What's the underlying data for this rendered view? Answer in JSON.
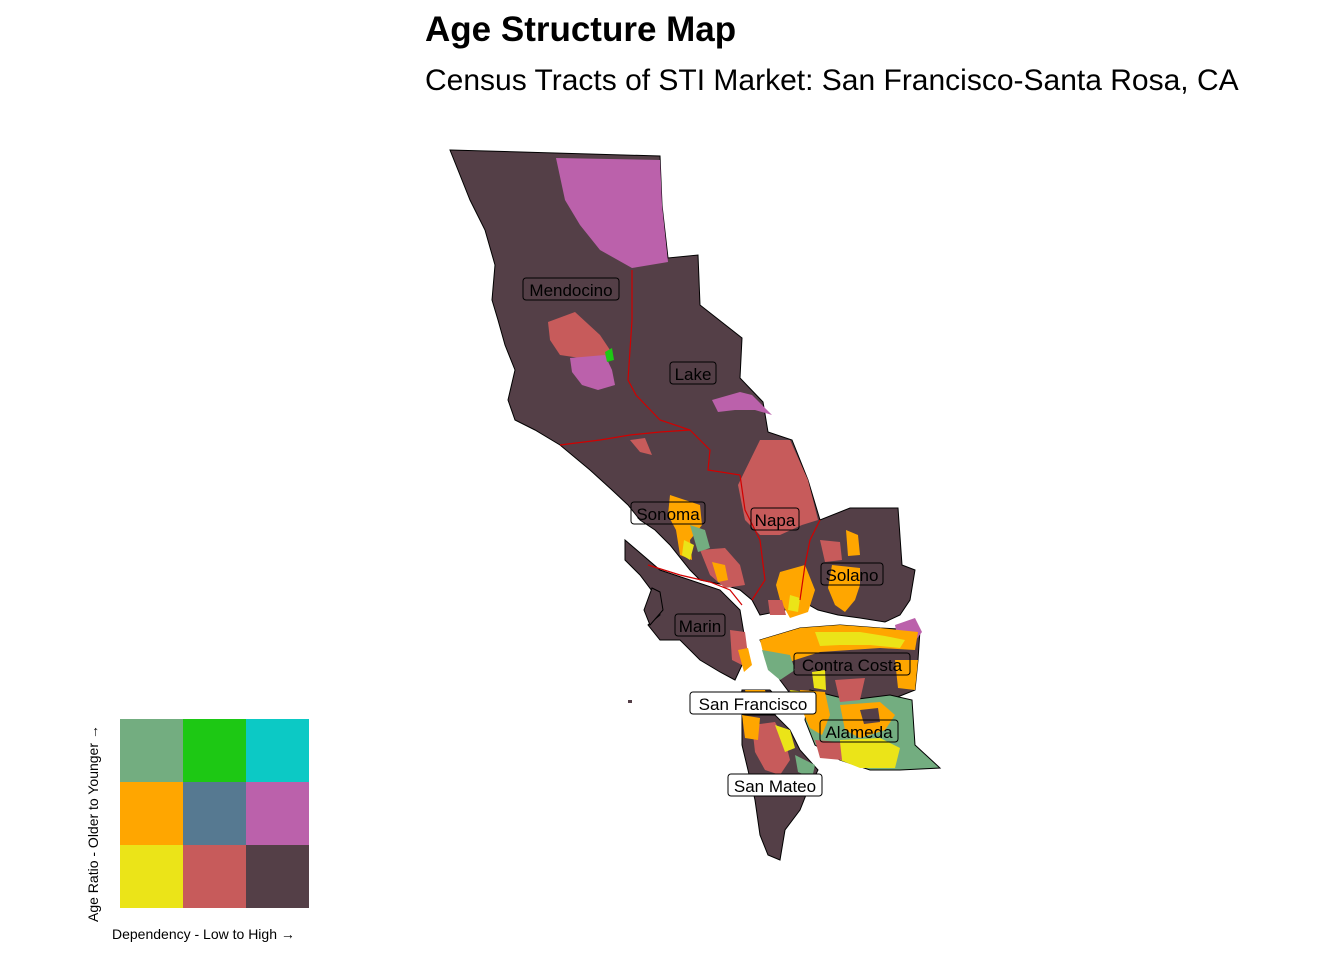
{
  "title": "Age Structure Map",
  "subtitle": "Census Tracts of STI Market: San Francisco-Santa Rosa, CA",
  "counties": [
    {
      "id": "mendocino",
      "label": "Mendocino"
    },
    {
      "id": "lake",
      "label": "Lake"
    },
    {
      "id": "sonoma",
      "label": "Sonoma"
    },
    {
      "id": "napa",
      "label": "Napa"
    },
    {
      "id": "solano",
      "label": "Solano"
    },
    {
      "id": "marin",
      "label": "Marin"
    },
    {
      "id": "contra-costa",
      "label": "Contra Costa"
    },
    {
      "id": "san-francisco",
      "label": "San Francisco"
    },
    {
      "id": "alameda",
      "label": "Alameda"
    },
    {
      "id": "san-mateo",
      "label": "San Mateo"
    }
  ],
  "legend": {
    "y_axis_label": "Age Ratio - Older to Younger",
    "x_axis_label": "Dependency - Low to High",
    "arrow": "→",
    "rows": [
      [
        "#73ad80",
        "#1dc814",
        "#0cc9c5"
      ],
      [
        "#ffa600",
        "#567991",
        "#bb61ab"
      ],
      [
        "#ebe418",
        "#c75b5b",
        "#543f47"
      ]
    ]
  },
  "colors": {
    "dark": "#543f47",
    "red": "#c75b5b",
    "magenta": "#bb61ab",
    "orange": "#ffa600",
    "yellow": "#ebe418",
    "green": "#73ad80",
    "bright_green": "#1dc814",
    "county_border": "#d10000"
  }
}
